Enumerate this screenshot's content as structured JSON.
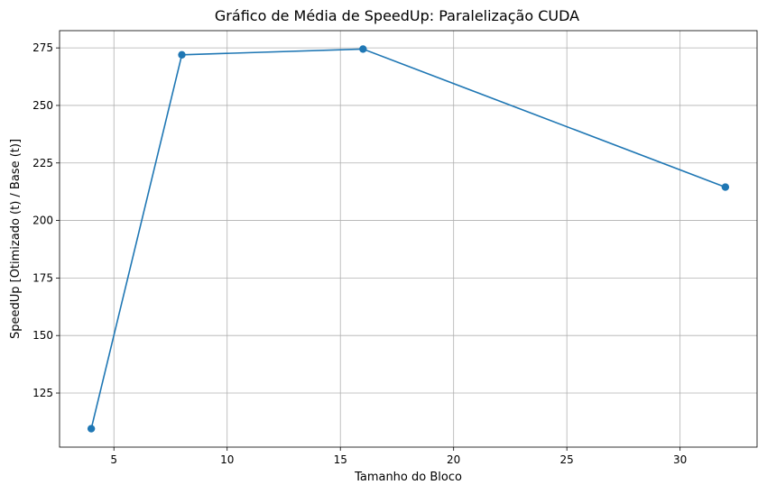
{
  "chart_data": {
    "type": "line",
    "title": "Gráfico de Média de SpeedUp: Paralelização CUDA",
    "xlabel": "Tamanho do Bloco",
    "ylabel": "SpeedUp [Otimizado (t) / Base (t)]",
    "x": [
      4,
      8,
      16,
      32
    ],
    "series": [
      {
        "values": [
          109.5,
          272.0,
          274.5,
          214.5
        ]
      }
    ],
    "xlim": [
      2.6,
      33.4
    ],
    "ylim": [
      101.5,
      282.5
    ],
    "xticks": [
      5,
      10,
      15,
      20,
      25,
      30
    ],
    "yticks": [
      125,
      150,
      175,
      200,
      225,
      250,
      275
    ],
    "grid": true,
    "marker": "circle",
    "colors": {
      "line": "#1f77b4",
      "grid": "#b0b0b0"
    }
  }
}
